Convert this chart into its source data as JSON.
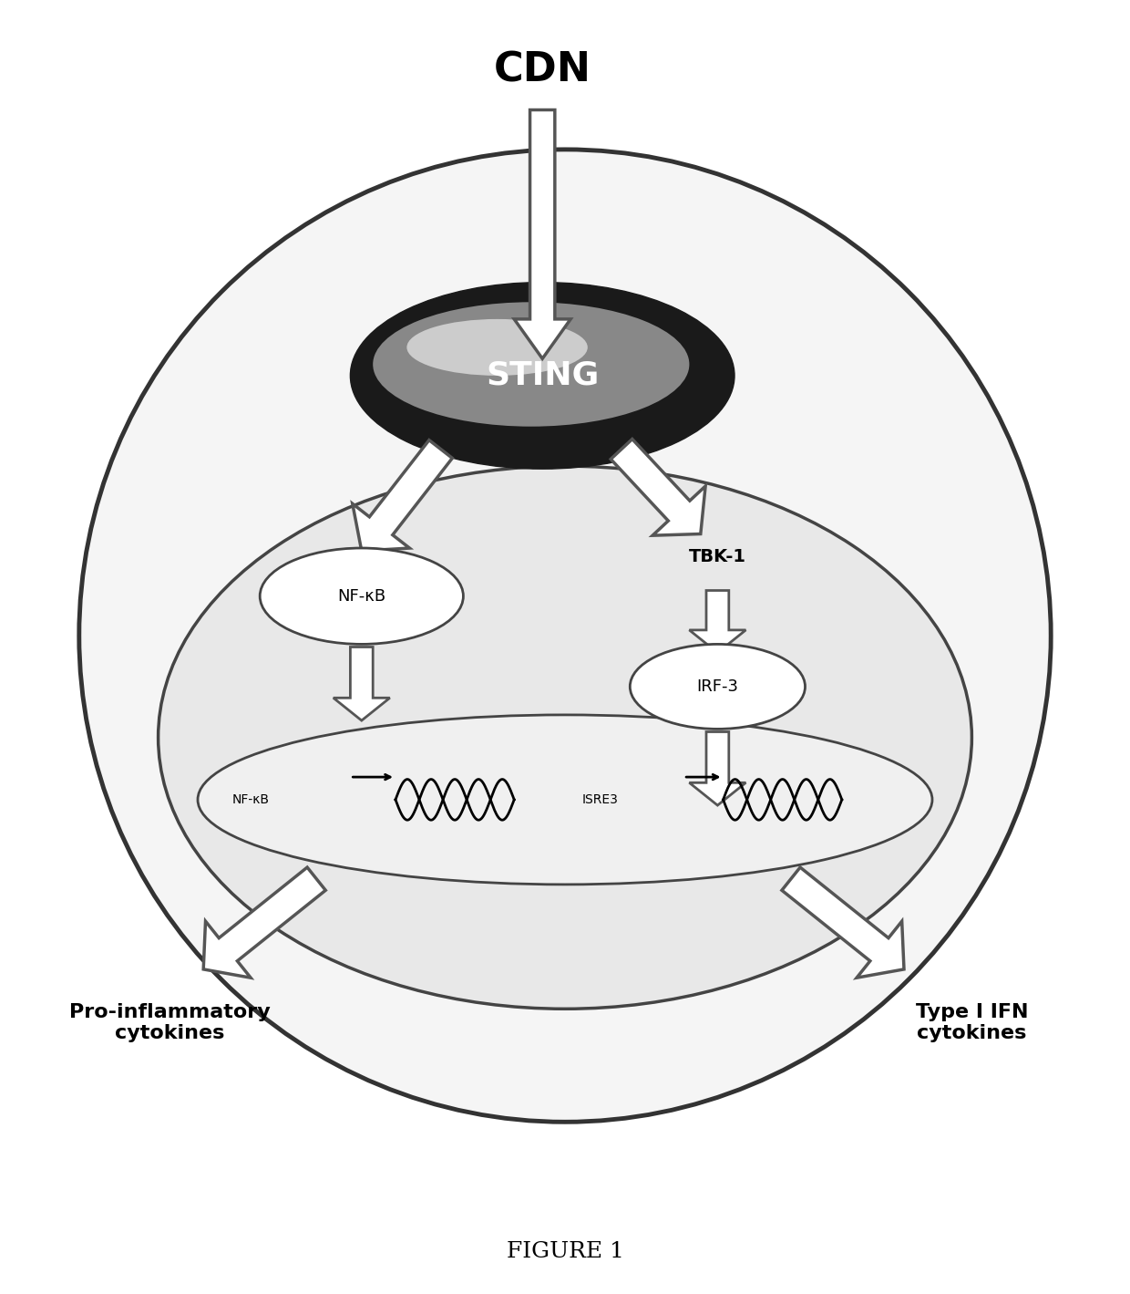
{
  "title": "FIGURE 1",
  "cdn_label": "CDN",
  "sting_label": "STING",
  "tbk1_label": "TBK-1",
  "nfkb_label": "NF-κB",
  "irf3_label": "IRF-3",
  "isre3_label": "ISRE3",
  "pro_inflammatory_label": "Pro-inflammatory\ncytokines",
  "type1_ifn_label": "Type I IFN\ncytokines",
  "bg_color": "#ffffff",
  "cell_fill": "#f5f5f5",
  "cell_edge": "#333333",
  "nucleus_fill": "#e8e8e8",
  "nucleus_edge": "#444444",
  "sting_fill_center": "#a0a0a0",
  "sting_fill_edge": "#303030",
  "arrow_color": "#555555",
  "arrow_edge": "#222222",
  "nfkb_oval_fill": "#ffffff",
  "nfkb_oval_edge": "#444444",
  "irf3_oval_fill": "#ffffff",
  "irf3_oval_edge": "#444444",
  "dna_oval_fill": "#f0f0f0",
  "dna_oval_edge": "#444444"
}
